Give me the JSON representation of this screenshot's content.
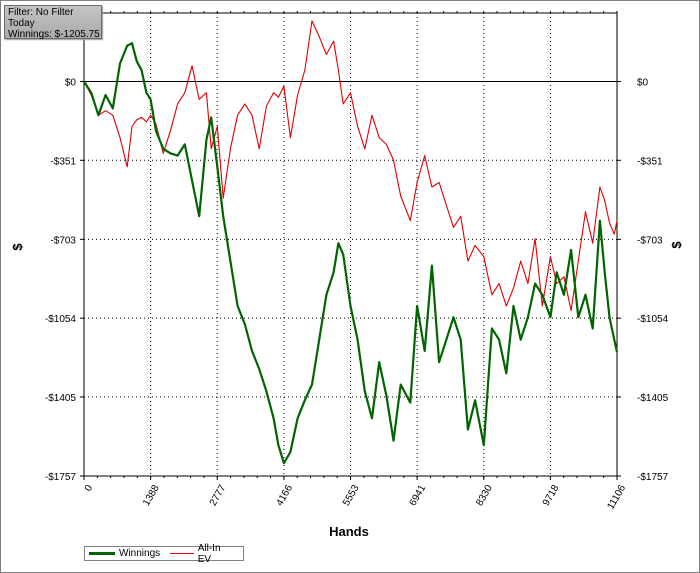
{
  "filter_box": {
    "line1": "Filter: No Filter",
    "line2": "Today",
    "line3": "Winnings: $-1205.75"
  },
  "chart_data": {
    "type": "line",
    "xlabel": "Hands",
    "ylabel": "$",
    "xlim": [
      0,
      11106
    ],
    "ylim": [
      -1757,
      305
    ],
    "x_ticks": [
      0,
      1388,
      2777,
      4166,
      5553,
      6941,
      8330,
      9718,
      11106
    ],
    "x_tick_labels": [
      "0",
      "1388",
      "2777",
      "4166",
      "5553",
      "6941",
      "8330",
      "9718",
      "11106"
    ],
    "y_ticks": [
      0,
      -351,
      -703,
      -1054,
      -1405,
      -1757
    ],
    "y_tick_labels": [
      "$0",
      "-$351",
      "-$703",
      "-$1054",
      "-$1405",
      "-$1757"
    ],
    "grid": true,
    "zero_line": true,
    "legend_position": "bottom-left",
    "series": [
      {
        "name": "Winnings",
        "color": "#006400",
        "x": [
          0,
          150,
          300,
          450,
          600,
          750,
          900,
          1000,
          1100,
          1200,
          1300,
          1388,
          1500,
          1650,
          1800,
          1950,
          2100,
          2250,
          2400,
          2550,
          2650,
          2777,
          2900,
          3050,
          3200,
          3350,
          3500,
          3650,
          3800,
          3950,
          4050,
          4166,
          4300,
          4450,
          4600,
          4750,
          4900,
          5050,
          5200,
          5300,
          5400,
          5553,
          5700,
          5850,
          6000,
          6150,
          6300,
          6450,
          6600,
          6800,
          6941,
          7100,
          7250,
          7400,
          7550,
          7700,
          7850,
          8000,
          8150,
          8330,
          8500,
          8650,
          8800,
          8950,
          9100,
          9250,
          9400,
          9550,
          9718,
          9850,
          10000,
          10150,
          10300,
          10450,
          10600,
          10750,
          10850,
          10950,
          11050,
          11106
        ],
        "y": [
          0,
          -50,
          -150,
          -60,
          -120,
          80,
          160,
          170,
          90,
          50,
          -50,
          -80,
          -220,
          -300,
          -320,
          -330,
          -280,
          -440,
          -600,
          -260,
          -160,
          -380,
          -600,
          -800,
          -1000,
          -1080,
          -1200,
          -1280,
          -1380,
          -1500,
          -1620,
          -1700,
          -1650,
          -1500,
          -1420,
          -1350,
          -1150,
          -950,
          -850,
          -720,
          -770,
          -1000,
          -1150,
          -1380,
          -1500,
          -1250,
          -1400,
          -1600,
          -1350,
          -1430,
          -1000,
          -1200,
          -820,
          -1250,
          -1150,
          -1050,
          -1150,
          -1550,
          -1420,
          -1620,
          -1100,
          -1150,
          -1300,
          -1000,
          -1150,
          -1050,
          -900,
          -950,
          -1050,
          -850,
          -950,
          -750,
          -1050,
          -950,
          -1100,
          -620,
          -850,
          -1050,
          -1150,
          -1205
        ]
      },
      {
        "name": "All-In EV",
        "color": "#e00000",
        "x": [
          0,
          150,
          300,
          450,
          600,
          750,
          900,
          1000,
          1100,
          1200,
          1300,
          1388,
          1500,
          1650,
          1800,
          1950,
          2100,
          2250,
          2400,
          2550,
          2650,
          2777,
          2900,
          3050,
          3200,
          3350,
          3500,
          3650,
          3800,
          3950,
          4050,
          4166,
          4300,
          4450,
          4600,
          4750,
          4900,
          5050,
          5200,
          5300,
          5400,
          5553,
          5700,
          5850,
          6000,
          6150,
          6300,
          6450,
          6600,
          6800,
          6941,
          7100,
          7250,
          7400,
          7550,
          7700,
          7850,
          8000,
          8150,
          8330,
          8500,
          8650,
          8800,
          8950,
          9100,
          9250,
          9400,
          9550,
          9718,
          9850,
          10000,
          10150,
          10300,
          10450,
          10600,
          10750,
          10850,
          10950,
          11050,
          11106
        ],
        "y": [
          0,
          -60,
          -150,
          -130,
          -150,
          -250,
          -380,
          -200,
          -170,
          -160,
          -180,
          -150,
          -190,
          -320,
          -220,
          -100,
          -50,
          70,
          -80,
          -50,
          -300,
          -200,
          -520,
          -300,
          -150,
          -100,
          -150,
          -300,
          -110,
          -50,
          -70,
          -20,
          -250,
          -60,
          50,
          270,
          200,
          120,
          180,
          50,
          -100,
          -50,
          -200,
          -300,
          -150,
          -250,
          -280,
          -350,
          -510,
          -620,
          -450,
          -330,
          -470,
          -450,
          -550,
          -650,
          -600,
          -800,
          -730,
          -780,
          -950,
          -900,
          -1000,
          -920,
          -800,
          -900,
          -700,
          -1000,
          -780,
          -900,
          -870,
          -1020,
          -800,
          -580,
          -720,
          -470,
          -530,
          -630,
          -680,
          -620
        ]
      }
    ]
  }
}
